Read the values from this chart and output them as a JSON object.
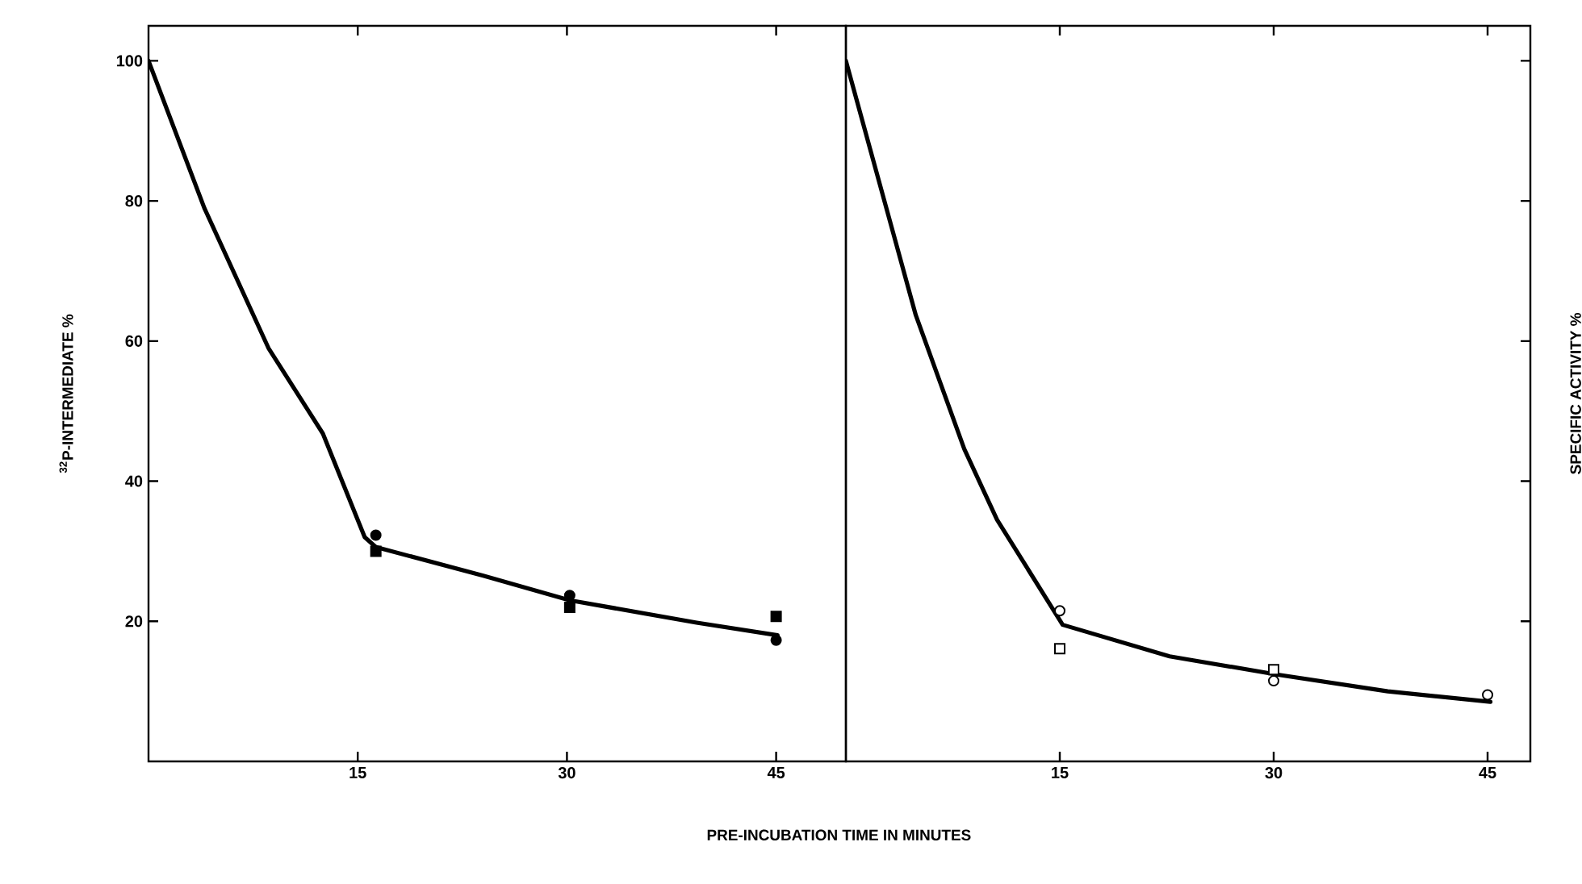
{
  "chart_data": [
    {
      "type": "line",
      "xlabel": "PRE-INCUBATION TIME IN MINUTES",
      "ylabel": "$^{32}$P-INTERMEDIATE %",
      "xlim": [
        0,
        50
      ],
      "ylim": [
        0,
        105
      ],
      "xticks": [
        15,
        30,
        45
      ],
      "yticks": [
        20,
        40,
        60,
        80,
        100
      ],
      "series": [
        {
          "color": "#000000",
          "marker": "none",
          "x": [
            0,
            4,
            8.6,
            12.5,
            15.5,
            16.3,
            24,
            30.2,
            39.3,
            45.1
          ],
          "values": [
            100,
            79,
            59,
            46.8,
            32,
            30.6,
            26.5,
            23,
            19.8,
            18
          ]
        },
        {
          "type": "scatter",
          "color": "#000000",
          "marker": "circle",
          "x": [
            16.3,
            30.2,
            45
          ],
          "values": [
            32.3,
            23.7,
            17.3
          ]
        },
        {
          "type": "scatter",
          "color": "#000000",
          "marker": "square",
          "x": [
            16.3,
            30.2,
            45
          ],
          "values": [
            30,
            22,
            20.7
          ]
        }
      ]
    },
    {
      "type": "line",
      "ylabel": "SPECIFIC ACTIVITY %",
      "xlim": [
        0,
        48
      ],
      "ylim": [
        0,
        105
      ],
      "xticks": [
        15,
        30,
        45
      ],
      "yticks": [
        20,
        40,
        60,
        80,
        100
      ],
      "tick_labels": "x",
      "series": [
        {
          "color": "#000000",
          "marker": "none",
          "x": [
            0,
            4.9,
            8.3,
            10.6,
            15.2,
            22.7,
            30.2,
            38,
            45.2
          ],
          "values": [
            100,
            63.7,
            44.6,
            34.5,
            19.5,
            15,
            12.4,
            10,
            8.5
          ]
        },
        {
          "type": "scatter",
          "color": "#000000",
          "marker": "circle",
          "x": [
            15,
            30,
            45
          ],
          "values": [
            21.5,
            11.5,
            9.5
          ]
        },
        {
          "type": "scatter",
          "color": "#000000",
          "marker": "square",
          "x": [
            15,
            30
          ],
          "values": [
            16.1,
            13.1
          ]
        }
      ]
    }
  ]
}
